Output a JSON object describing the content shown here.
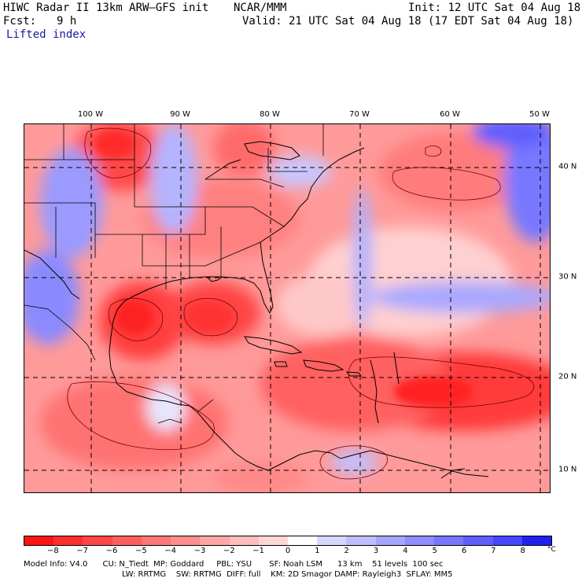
{
  "header": {
    "model_title": "HIWC Radar II 13km ARW–GFS init",
    "org": "NCAR/MMM",
    "init": "Init: 12 UTC Sat 04 Aug 18",
    "fcst_label": "Fcst:",
    "fcst_value": "9 h",
    "valid": "Valid: 21 UTC Sat 04 Aug 18 (17 EDT Sat 04 Aug 18)",
    "field": "Lifted index"
  },
  "map": {
    "lon_labels": [
      "100 W",
      "90 W",
      "80 W",
      "70 W",
      "60 W",
      "50 W"
    ],
    "lat_labels": [
      "40 N",
      "30 N",
      "20 N",
      "10 N"
    ]
  },
  "colorbar": {
    "ticks": [
      "−8",
      "−7",
      "−6",
      "−5",
      "−4",
      "−3",
      "−2",
      "−1",
      "0",
      "1",
      "2",
      "3",
      "4",
      "5",
      "6",
      "7",
      "8"
    ],
    "unit": "°C",
    "colors": [
      "#ff1414",
      "#ff2e2e",
      "#ff4646",
      "#ff5e5e",
      "#ff7676",
      "#ff8e8e",
      "#ffa6a6",
      "#ffbebe",
      "#ffd6d6",
      "#ffffff",
      "#d6d6ff",
      "#bebeff",
      "#a6a6ff",
      "#8e8eff",
      "#7676ff",
      "#5e5eff",
      "#4646ff",
      "#2020f0"
    ]
  },
  "footer": {
    "line1": "Model Info: V4.0      CU: N_Tiedt  MP: Goddard     PBL: YSU       SF: Noah LSM      13 km    51 levels  100 sec",
    "line2": "LW: RRTMG    SW: RRTMG  DIFF: full    KM: 2D Smagor DAMP: Rayleigh3  SFLAY: MM5"
  }
}
